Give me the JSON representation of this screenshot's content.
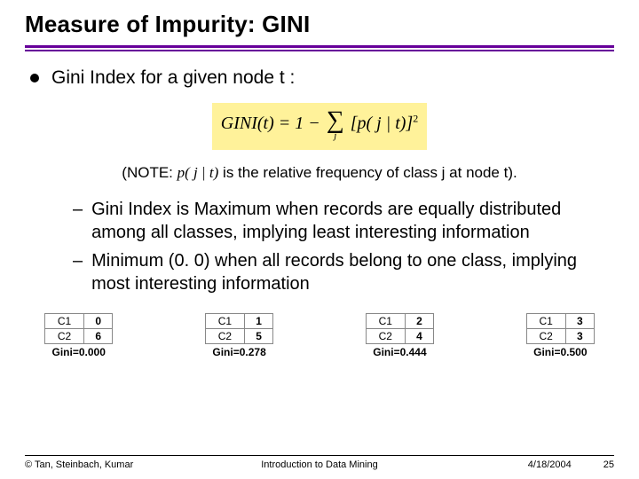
{
  "title": "Measure of Impurity: GINI",
  "bullet1": "Gini Index for a given node t :",
  "formula": {
    "lhs": "GINI",
    "arg": "(t)",
    "eq": "=",
    "one": "1",
    "minus": "−",
    "sum_over": "j",
    "inside": "[p( j | t)]",
    "exp": "2",
    "background_color": "#fff29a"
  },
  "note_prefix": "(NOTE: ",
  "note_pjit": "p( j | t)",
  "note_suffix": " is the relative frequency of class j at node t).",
  "dash_items": [
    "Gini Index is Maximum when records are equally distributed among all classes, implying least interesting information",
    "Minimum (0. 0) when all records belong to one class, implying most interesting information"
  ],
  "tables": [
    {
      "rows": [
        [
          "C1",
          "0"
        ],
        [
          "C2",
          "6"
        ]
      ],
      "gini_label": "Gini=0.000"
    },
    {
      "rows": [
        [
          "C1",
          "1"
        ],
        [
          "C2",
          "5"
        ]
      ],
      "gini_label": "Gini=0.278"
    },
    {
      "rows": [
        [
          "C1",
          "2"
        ],
        [
          "C2",
          "4"
        ]
      ],
      "gini_label": "Gini=0.444"
    },
    {
      "rows": [
        [
          "C1",
          "3"
        ],
        [
          "C2",
          "3"
        ]
      ],
      "gini_label": "Gini=0.500"
    }
  ],
  "footer": {
    "left": "© Tan, Steinbach, Kumar",
    "center": "Introduction to Data Mining",
    "date": "4/18/2004",
    "page": "25"
  },
  "colors": {
    "rule": "#660099",
    "text": "#000000",
    "bg": "#ffffff",
    "border": "#888888"
  }
}
